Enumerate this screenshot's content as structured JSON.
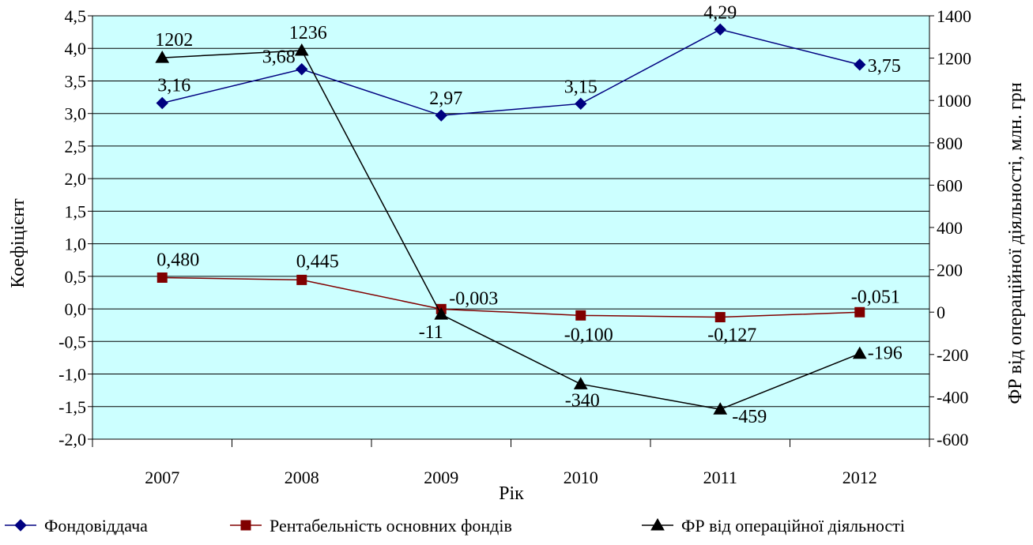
{
  "chart_data": {
    "type": "line",
    "categories": [
      "2007",
      "2008",
      "2009",
      "2010",
      "2011",
      "2012"
    ],
    "title": "",
    "xlabel": "Рік",
    "ylabel": "Коефіцієнт",
    "y2label": "ФР від операційної діяльності, млн. грн",
    "ylim": [
      -2.0,
      4.5
    ],
    "y2lim": [
      -600,
      1400
    ],
    "yticks": [
      "-2,0",
      "-1,5",
      "-1,0",
      "-0,5",
      "0,0",
      "0,5",
      "1,0",
      "1,5",
      "2,0",
      "2,5",
      "3,0",
      "3,5",
      "4,0",
      "4,5"
    ],
    "y2ticks": [
      "-600",
      "-400",
      "-200",
      "0",
      "200",
      "400",
      "600",
      "800",
      "1000",
      "1200",
      "1400"
    ],
    "grid": true,
    "legend_position": "bottom",
    "plot_background": "#ccffff",
    "series": [
      {
        "name": "Фондовіддача",
        "axis": "left",
        "marker": "diamond",
        "color": "#000080",
        "values": [
          3.16,
          3.68,
          2.97,
          3.15,
          4.29,
          3.75
        ],
        "labels": [
          "3,16",
          "3,68",
          "2,97",
          "3,15",
          "4,29",
          "3,75"
        ]
      },
      {
        "name": "Рентабельність основних фондів",
        "axis": "left",
        "marker": "square",
        "color": "#800000",
        "values": [
          0.48,
          0.445,
          -0.003,
          -0.1,
          -0.127,
          -0.051
        ],
        "labels": [
          "0,480",
          "0,445",
          "-0,003",
          "-0,100",
          "-0,127",
          "-0,051"
        ]
      },
      {
        "name": "ФР від операційної діяльності",
        "axis": "right",
        "marker": "triangle",
        "color": "#000000",
        "values": [
          1202,
          1236,
          -11,
          -340,
          -459,
          -196
        ],
        "labels": [
          "1202",
          "1236",
          "-11",
          "-340",
          "-459",
          "-196"
        ]
      }
    ]
  }
}
